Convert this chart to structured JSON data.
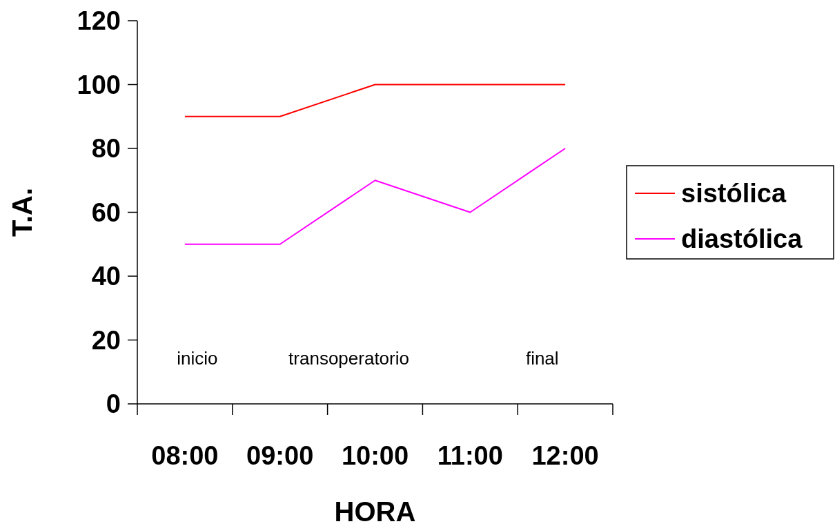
{
  "chart_data": {
    "type": "line",
    "xlabel": "HORA",
    "ylabel": "T.A.",
    "categories": [
      "08:00",
      "09:00",
      "10:00",
      "11:00",
      "12:00"
    ],
    "series": [
      {
        "name": "sistólica",
        "color": "#ff0000",
        "values": [
          90,
          90,
          100,
          100,
          100
        ]
      },
      {
        "name": "diastólica",
        "color": "#ff00ff",
        "values": [
          50,
          50,
          70,
          60,
          80
        ]
      }
    ],
    "ylim": [
      0,
      120
    ],
    "yticks": [
      0,
      20,
      40,
      60,
      80,
      100,
      120
    ],
    "grid": false,
    "legend": "right",
    "marker": "none",
    "line_style": "solid",
    "annotations": [
      "inicio",
      "transoperatorio",
      "final"
    ]
  }
}
